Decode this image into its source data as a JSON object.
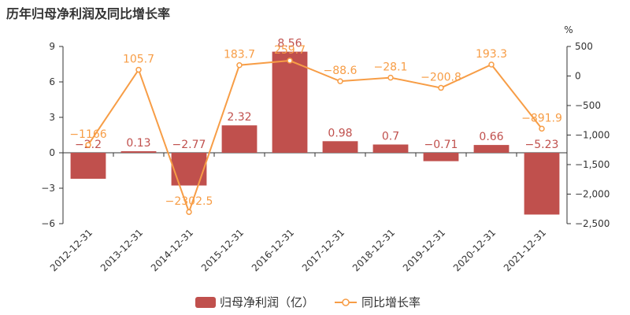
{
  "chart_data": {
    "type": "bar",
    "title": "历年归母净利润及同比增长率",
    "categories": [
      "2012-12-31",
      "2013-12-31",
      "2014-12-31",
      "2015-12-31",
      "2016-12-31",
      "2017-12-31",
      "2018-12-31",
      "2019-12-31",
      "2020-12-31",
      "2021-12-31"
    ],
    "series": [
      {
        "name": "归母净利润（亿）",
        "type": "bar",
        "axis": "left",
        "values": [
          -2.2,
          0.13,
          -2.77,
          2.32,
          8.56,
          0.98,
          0.7,
          -0.71,
          0.66,
          -5.23
        ],
        "labels": [
          "−2.2",
          "0.13",
          "−2.77",
          "2.32",
          "8.56",
          "0.98",
          "0.7",
          "−0.71",
          "0.66",
          "−5.23"
        ]
      },
      {
        "name": "同比增长率",
        "type": "line",
        "axis": "right",
        "values": [
          -1166,
          105.7,
          -2302.5,
          183.7,
          259.7,
          -88.6,
          -28.1,
          -200.8,
          193.3,
          -891.9
        ],
        "labels": [
          "−1166",
          "105.7",
          "−2302.5",
          "183.7",
          "259.7",
          "−88.6",
          "−28.1",
          "−200.8",
          "193.3",
          "−891.9"
        ]
      }
    ],
    "left_axis": {
      "ylim": [
        -6,
        9
      ],
      "ticks": [
        "9",
        "6",
        "3",
        "0",
        "−3",
        "−6"
      ],
      "tick_values": [
        9,
        6,
        3,
        0,
        -3,
        -6
      ]
    },
    "right_axis": {
      "unit": "%",
      "ylim": [
        -2500,
        500
      ],
      "ticks": [
        "500",
        "0",
        "−500",
        "−1,000",
        "−1,500",
        "−2,000",
        "−2,500"
      ],
      "tick_values": [
        500,
        0,
        -500,
        -1000,
        -1500,
        -2000,
        -2500
      ]
    },
    "legend_position": "bottom-center",
    "colors": {
      "bar": "#c0504d",
      "line": "#f79d46",
      "axis": "#333333",
      "grid": "#e0e0e0"
    }
  }
}
